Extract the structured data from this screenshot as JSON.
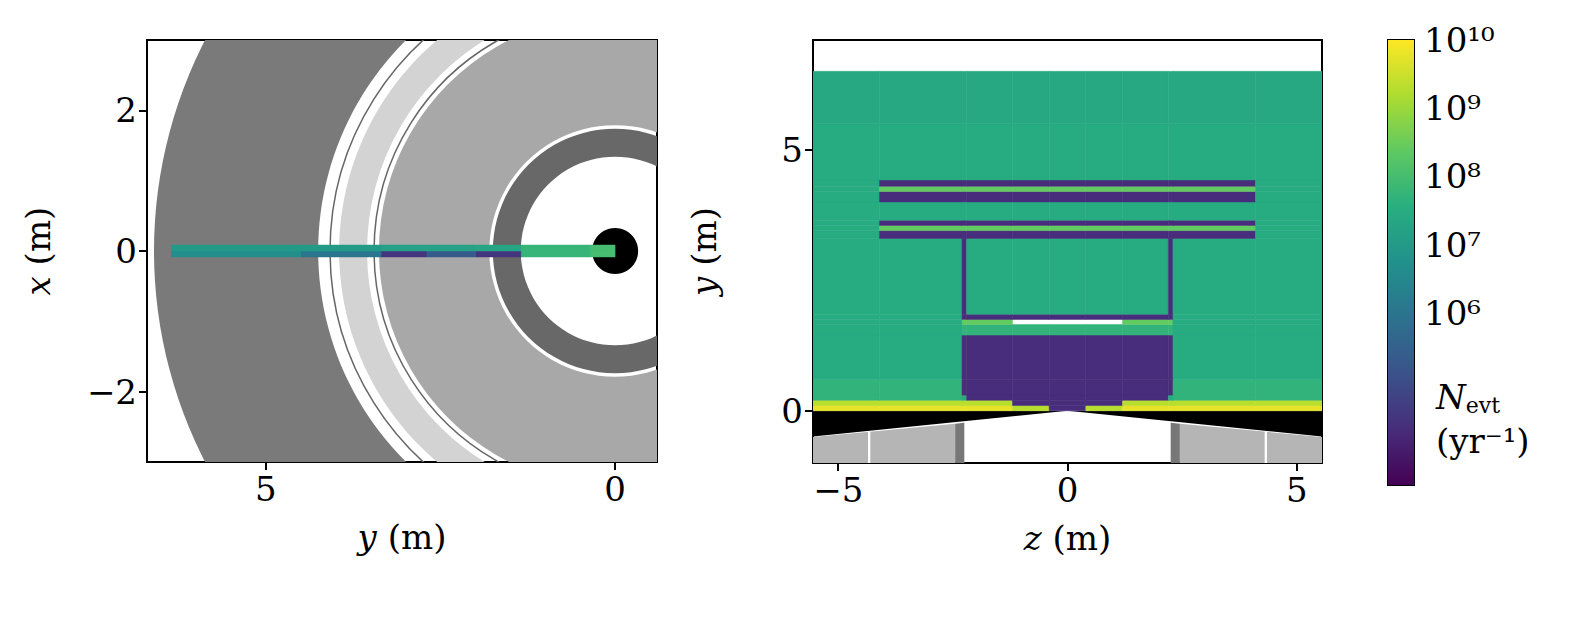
{
  "chart_data": [
    {
      "type": "heatmap",
      "x_label": "y (m)",
      "y_label": "x (m)",
      "xlim": [
        6.7,
        -0.6
      ],
      "ylim": [
        -3,
        3
      ],
      "xticks": [
        5,
        0
      ],
      "yticks": [
        {
          "value": -2,
          "label": "−2"
        },
        0,
        2
      ],
      "grid": false,
      "x_edges": [
        0,
        0.35,
        1.35,
        2.0,
        2.7,
        3.35,
        4.5,
        6.35
      ],
      "y_edges": [
        -0.085,
        0,
        0.085
      ],
      "counts": [
        [
          100000000,
          60000000,
          30000,
          200000,
          30000,
          1000000,
          5000000
        ],
        [
          100000000,
          60000000,
          20000000,
          15000000,
          15000000,
          10000000,
          10000000
        ]
      ]
    },
    {
      "type": "heatmap",
      "x_label": "z (m)",
      "y_label": "y (m)",
      "xlim": [
        -5.55,
        5.55
      ],
      "ylim": [
        -1.0,
        7.1
      ],
      "xticks": [
        {
          "value": -5,
          "label": "−5"
        },
        0,
        5
      ],
      "yticks": [
        0,
        5
      ],
      "grid": false,
      "x_edges": [
        -5.55,
        -4.1,
        -2.3,
        -2.2,
        -1.2,
        -0.4,
        0.4,
        1.2,
        2.2,
        2.3,
        4.1,
        5.55
      ],
      "y_edges": [
        0,
        0.1,
        0.2,
        0.3,
        0.6,
        1.45,
        1.65,
        1.75,
        1.85,
        3.3,
        3.45,
        3.55,
        3.65,
        4.0,
        4.2,
        4.3,
        4.42,
        5.5,
        6.5
      ],
      "counts": [
        [
          6000000000,
          6000000000,
          6000000000,
          6000000000,
          2000000000,
          20000,
          2000000000,
          6000000000,
          6000000000,
          6000000000,
          6000000000
        ],
        [
          2000000000,
          2000000000,
          2000000000,
          2000000000,
          20000,
          20000,
          20000,
          2000000000,
          2000000000,
          2000000000,
          2000000000
        ],
        [
          50000000,
          50000000,
          30000000,
          20000,
          20000,
          20000,
          20000,
          20000,
          30000000,
          50000000,
          50000000
        ],
        [
          50000000,
          50000000,
          20000,
          20000,
          20000,
          20000,
          20000,
          20000,
          20000,
          50000000,
          50000000
        ],
        [
          30000000,
          30000000,
          20000,
          20000,
          20000,
          20000,
          20000,
          20000,
          20000,
          30000000,
          30000000
        ],
        [
          30000000,
          30000000,
          50000000,
          50000000,
          50000000,
          50000000,
          50000000,
          50000000,
          50000000,
          30000000,
          30000000
        ],
        [
          30000000,
          30000000,
          250000000,
          250000000,
          null,
          null,
          null,
          250000000,
          250000000,
          30000000,
          30000000
        ],
        [
          30000000,
          30000000,
          20000,
          20000,
          20000,
          20000,
          20000,
          20000,
          20000,
          30000000,
          30000000
        ],
        [
          30000000,
          30000000,
          20000,
          30000000,
          30000000,
          30000000,
          30000000,
          30000000,
          20000,
          30000000,
          30000000
        ],
        [
          30000000,
          20000,
          20000,
          20000,
          20000,
          20000,
          20000,
          20000,
          20000,
          20000,
          30000000
        ],
        [
          30000000,
          250000000,
          250000000,
          250000000,
          250000000,
          250000000,
          250000000,
          250000000,
          250000000,
          250000000,
          30000000
        ],
        [
          30000000,
          20000,
          20000,
          20000,
          20000,
          20000,
          20000,
          20000,
          20000,
          20000,
          30000000
        ],
        [
          30000000,
          30000000,
          30000000,
          30000000,
          30000000,
          30000000,
          30000000,
          30000000,
          30000000,
          30000000,
          30000000
        ],
        [
          30000000,
          20000,
          20000,
          20000,
          20000,
          20000,
          20000,
          20000,
          20000,
          20000,
          30000000
        ],
        [
          30000000,
          250000000,
          250000000,
          250000000,
          250000000,
          250000000,
          250000000,
          250000000,
          250000000,
          250000000,
          30000000
        ],
        [
          30000000,
          20000,
          20000,
          20000,
          20000,
          20000,
          20000,
          20000,
          20000,
          20000,
          30000000
        ],
        [
          30000000,
          30000000,
          30000000,
          30000000,
          30000000,
          30000000,
          30000000,
          30000000,
          30000000,
          30000000,
          30000000
        ],
        [
          25000000,
          25000000,
          25000000,
          25000000,
          25000000,
          25000000,
          25000000,
          25000000,
          25000000,
          25000000,
          25000000
        ]
      ]
    }
  ],
  "colorbar": {
    "label": {
      "symbol": "N",
      "subscript": "evt",
      "unit": "(yr⁻¹)"
    },
    "range": [
      3000,
      10000000000
    ],
    "log": true,
    "ticks": [
      {
        "value": 1000000,
        "label": "10⁶"
      },
      {
        "value": 10000000,
        "label": "10⁷"
      },
      {
        "value": 100000000,
        "label": "10⁸"
      },
      {
        "value": 1000000000,
        "label": "10⁹"
      },
      {
        "value": 10000000000,
        "label": "10¹⁰"
      }
    ]
  }
}
